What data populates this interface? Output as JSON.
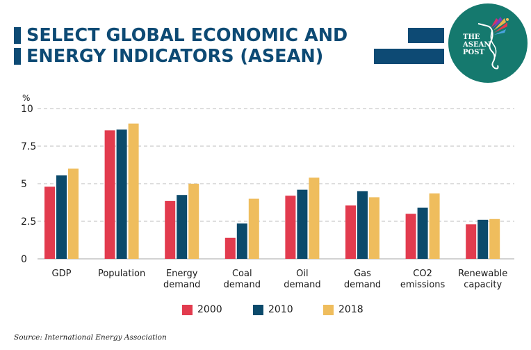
{
  "header": {
    "title_line1": "SELECT GLOBAL ECONOMIC AND",
    "title_line2": "ENERGY INDICATORS (ASEAN)",
    "logo": {
      "name": "The ASEAN Post",
      "line1": "THE",
      "line2": "ASEAN",
      "line3": "POST",
      "icon": "hummingbird-icon",
      "background_color": "#15796e"
    }
  },
  "colors": {
    "title": "#0d4a74",
    "s2000": "#e23b4e",
    "s2010": "#0b4a6b",
    "s2018": "#efbd5d"
  },
  "chart_data": {
    "type": "bar",
    "title": "Select Global Economic and Energy Indicators (ASEAN)",
    "xlabel": "",
    "ylabel": "%",
    "ylim": [
      0,
      10
    ],
    "yticks": [
      0,
      2.5,
      5,
      7.5,
      10
    ],
    "ytick_labels": [
      "0",
      "2.5",
      "5",
      "7.5",
      "10"
    ],
    "grid": "horizontal-dashed",
    "legend_position": "bottom-center",
    "categories": [
      "GDP",
      "Population",
      "Energy demand",
      "Coal demand",
      "Oil demand",
      "Gas demand",
      "CO2 emissions",
      "Renewable capacity"
    ],
    "category_labels": [
      [
        "GDP"
      ],
      [
        "Population"
      ],
      [
        "Energy",
        "demand"
      ],
      [
        "Coal",
        "demand"
      ],
      [
        "Oil",
        "demand"
      ],
      [
        "Gas",
        "demand"
      ],
      [
        "CO2",
        "emissions"
      ],
      [
        "Renewable",
        "capacity"
      ]
    ],
    "series": [
      {
        "name": "2000",
        "color": "#e23b4e",
        "values": [
          4.8,
          8.55,
          3.85,
          1.4,
          4.2,
          3.55,
          3.0,
          2.3
        ]
      },
      {
        "name": "2010",
        "color": "#0b4a6b",
        "values": [
          5.55,
          8.6,
          4.25,
          2.35,
          4.6,
          4.5,
          3.4,
          2.6
        ]
      },
      {
        "name": "2018",
        "color": "#efbd5d",
        "values": [
          6.0,
          9.0,
          5.0,
          4.0,
          5.4,
          4.1,
          4.35,
          2.65
        ]
      }
    ]
  },
  "source": "Source: International Energy Association"
}
